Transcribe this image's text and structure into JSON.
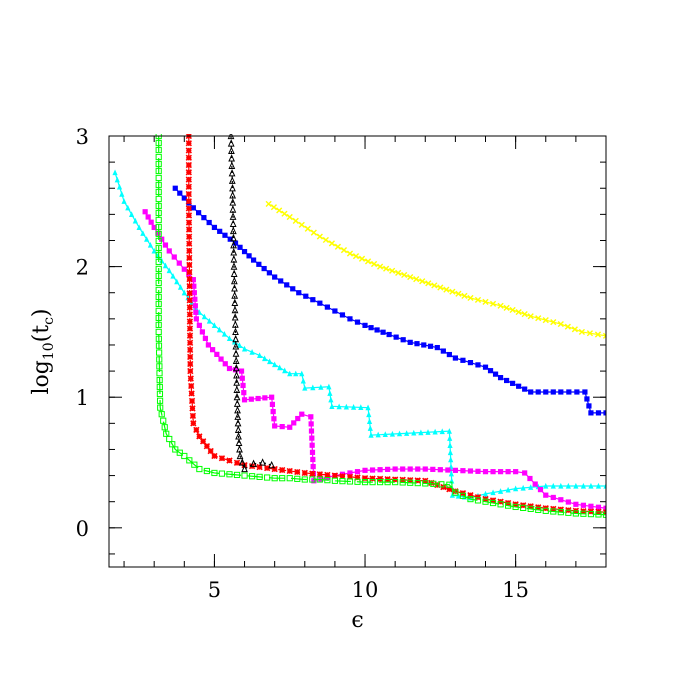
{
  "chart_data": {
    "type": "line",
    "title": "",
    "xlabel": "ϵ",
    "ylabel_main": "log",
    "ylabel_sub": "10",
    "ylabel_paren_open": "(t",
    "ylabel_paren_sub": "c",
    "ylabel_paren_close": ")",
    "xlim": [
      1.5,
      18
    ],
    "ylim": [
      -0.3,
      3
    ],
    "xticks": [
      5,
      10,
      15
    ],
    "xtick_labels": [
      "5",
      "10",
      "15"
    ],
    "yticks": [
      0,
      1,
      2,
      3
    ],
    "ytick_labels": [
      "0",
      "1",
      "2",
      "3"
    ],
    "grid": false,
    "series": [
      {
        "color": "#ffff00",
        "marker": "x",
        "dash": "",
        "x": [
          6.8,
          7.5,
          8.5,
          9.5,
          10.5,
          11.5,
          12.5,
          13.5,
          14.5,
          15.5,
          16.5,
          17.2,
          18
        ],
        "y": [
          2.48,
          2.38,
          2.23,
          2.1,
          2.0,
          1.92,
          1.84,
          1.76,
          1.7,
          1.62,
          1.56,
          1.5,
          1.47
        ]
      },
      {
        "color": "#0000ff",
        "marker": "square",
        "dash": "",
        "x": [
          3.7,
          4.3,
          5.0,
          5.7,
          6.3,
          7.0,
          7.8,
          8.5,
          9.0,
          9.5,
          10.0,
          10.8,
          11.5,
          12.4,
          13.0,
          14.0,
          14.5,
          15.5,
          16.5,
          17.3,
          17.5,
          18
        ],
        "y": [
          2.6,
          2.45,
          2.3,
          2.18,
          2.05,
          1.92,
          1.8,
          1.72,
          1.66,
          1.6,
          1.55,
          1.48,
          1.42,
          1.38,
          1.3,
          1.23,
          1.15,
          1.04,
          1.04,
          1.04,
          0.88,
          0.88
        ]
      },
      {
        "color": "#00ffff",
        "marker": "triangle",
        "dash": "",
        "x": [
          1.7,
          2.0,
          2.5,
          3.0,
          3.5,
          4.0,
          4.5,
          5.0,
          5.5,
          6.0,
          6.5,
          7.0,
          7.5,
          7.9,
          8.0,
          8.8,
          8.9,
          10.1,
          10.2,
          12.8,
          12.9,
          13.5,
          14.0,
          15.0,
          16.0,
          17.0,
          18.0
        ],
        "y": [
          2.72,
          2.5,
          2.3,
          2.12,
          1.97,
          1.8,
          1.65,
          1.55,
          1.45,
          1.37,
          1.32,
          1.25,
          1.18,
          1.18,
          1.07,
          1.08,
          0.93,
          0.92,
          0.71,
          0.74,
          0.25,
          0.23,
          0.26,
          0.3,
          0.32,
          0.32,
          0.32
        ]
      },
      {
        "color": "#ff00ff",
        "marker": "square",
        "dash": "",
        "x": [
          2.7,
          3.0,
          3.5,
          4.0,
          4.3,
          4.4,
          4.8,
          5.5,
          5.9,
          6.0,
          6.9,
          7.0,
          7.5,
          7.9,
          8.2,
          8.3,
          9.0,
          10.0,
          11.0,
          12.0,
          13.0,
          14.0,
          15.0,
          15.3,
          16.0,
          17.0,
          18.0
        ],
        "y": [
          2.42,
          2.3,
          2.12,
          1.98,
          1.9,
          1.6,
          1.4,
          1.22,
          1.2,
          0.98,
          1.0,
          0.78,
          0.77,
          0.87,
          0.85,
          0.36,
          0.4,
          0.44,
          0.45,
          0.45,
          0.44,
          0.43,
          0.43,
          0.42,
          0.25,
          0.18,
          0.15
        ]
      },
      {
        "color": "#ff0000",
        "marker": "star",
        "dash": "8,6",
        "x": [
          4.15,
          4.15,
          4.2,
          4.3,
          4.5,
          5.0,
          6.0,
          7.0,
          8.0,
          9.0,
          10.0,
          11.0,
          12.0,
          13.0,
          14.0,
          15.0,
          16.0,
          17.0,
          18.0
        ],
        "y": [
          3.0,
          2.5,
          1.2,
          0.8,
          0.7,
          0.55,
          0.48,
          0.45,
          0.42,
          0.4,
          0.38,
          0.37,
          0.36,
          0.28,
          0.22,
          0.18,
          0.15,
          0.13,
          0.12
        ]
      },
      {
        "color": "#00ff00",
        "marker": "square-open",
        "dash": "16,6",
        "x": [
          3.15,
          3.15,
          3.2,
          3.4,
          3.7,
          4.0,
          4.5,
          5.0,
          5.5,
          6.0,
          6.5,
          7.0,
          7.5,
          8.0,
          8.5,
          9.0,
          10.0,
          11.0,
          12.0,
          12.8,
          13.0,
          13.5,
          14.0,
          15.0,
          16.0,
          17.0,
          18.0
        ],
        "y": [
          3.0,
          1.5,
          0.92,
          0.72,
          0.6,
          0.55,
          0.45,
          0.42,
          0.41,
          0.4,
          0.39,
          0.38,
          0.38,
          0.37,
          0.37,
          0.36,
          0.35,
          0.35,
          0.34,
          0.33,
          0.27,
          0.22,
          0.2,
          0.16,
          0.13,
          0.11,
          0.1
        ]
      },
      {
        "color": "#000000",
        "marker": "triangle-open",
        "dash": "2,3",
        "x": [
          5.55,
          5.6,
          5.65,
          5.7,
          5.75,
          5.8,
          5.85,
          6.0,
          6.3,
          6.6,
          6.9
        ],
        "y": [
          3.0,
          2.6,
          2.0,
          1.5,
          1.0,
          0.7,
          0.55,
          0.45,
          0.49,
          0.5,
          0.48
        ]
      }
    ]
  }
}
